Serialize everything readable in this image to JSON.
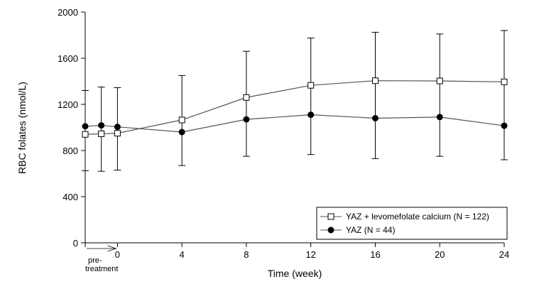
{
  "chart_data": {
    "type": "line",
    "xlabel": "Time (week)",
    "ylabel": "RBC folates (nmol/L)",
    "xlim": [
      -2,
      24
    ],
    "ylim": [
      0,
      2000
    ],
    "x_ticks": [
      0,
      4,
      8,
      12,
      16,
      20,
      24
    ],
    "y_ticks": [
      0,
      400,
      800,
      1200,
      1600,
      2000
    ],
    "pretreatment_label_line1": "pre-",
    "pretreatment_label_line2": "treatment",
    "pretreatment_range": [
      -2,
      0
    ],
    "legend_position": "lower-right",
    "error_bars": "upper and lower whiskers shown as absolute bounds",
    "series": [
      {
        "name": "YAZ + levomefolate calcium (N = 122)",
        "marker": "open-square",
        "points": [
          {
            "x": -2,
            "y": 940,
            "low": 625,
            "high": 1320
          },
          {
            "x": -1,
            "y": 945,
            "low": 620,
            "high": 1350
          },
          {
            "x": 0,
            "y": 950,
            "low": 630,
            "high": 1345
          },
          {
            "x": 4,
            "y": 1065,
            "low": 670,
            "high": 1450
          },
          {
            "x": 8,
            "y": 1260,
            "low": 750,
            "high": 1660
          },
          {
            "x": 12,
            "y": 1365,
            "low": 765,
            "high": 1775
          },
          {
            "x": 16,
            "y": 1405,
            "low": 730,
            "high": 1825
          },
          {
            "x": 20,
            "y": 1403,
            "low": 750,
            "high": 1810
          },
          {
            "x": 24,
            "y": 1395,
            "low": 720,
            "high": 1840
          }
        ]
      },
      {
        "name": "YAZ (N = 44)",
        "marker": "filled-circle",
        "points": [
          {
            "x": -2,
            "y": 1010
          },
          {
            "x": -1,
            "y": 1018
          },
          {
            "x": 0,
            "y": 1005
          },
          {
            "x": 4,
            "y": 960
          },
          {
            "x": 8,
            "y": 1070
          },
          {
            "x": 12,
            "y": 1110
          },
          {
            "x": 16,
            "y": 1080
          },
          {
            "x": 20,
            "y": 1090
          },
          {
            "x": 24,
            "y": 1015
          }
        ]
      }
    ]
  }
}
